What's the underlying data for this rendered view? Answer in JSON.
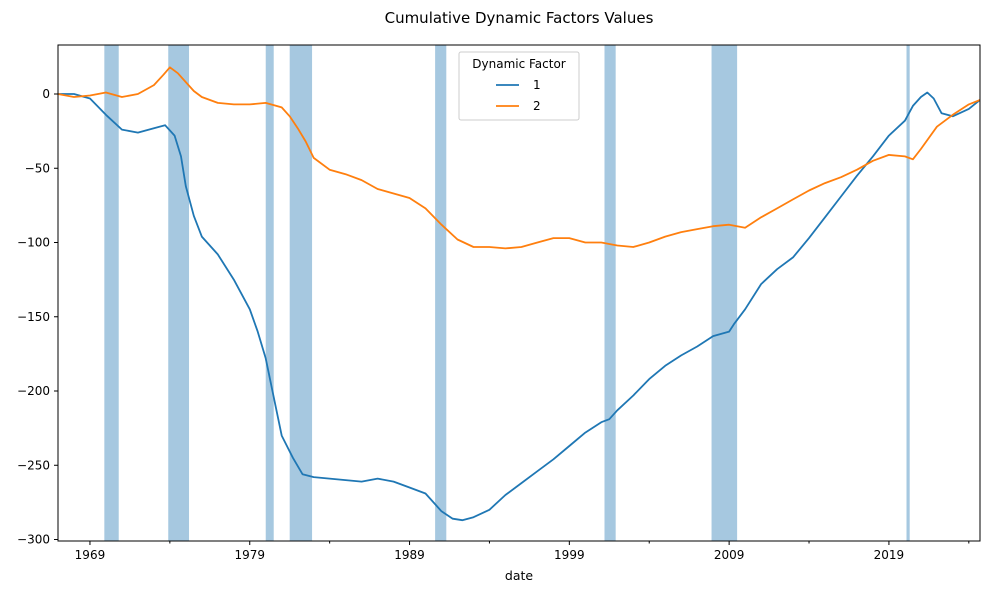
{
  "chart_data": {
    "type": "line",
    "title": "Cumulative Dynamic Factors Values",
    "xlabel": "date",
    "ylabel": "",
    "x_range": [
      1967.0,
      2024.7
    ],
    "ylim": [
      -301,
      33
    ],
    "x_ticks": [
      1969,
      1979,
      1989,
      1999,
      2009,
      2019
    ],
    "y_ticks": [
      0,
      -50,
      -100,
      -150,
      -200,
      -250,
      -300
    ],
    "grid": false,
    "legend": {
      "title": "Dynamic Factor",
      "placement": "top-center"
    },
    "shaded_periods": [
      {
        "start": 1969.9,
        "end": 1970.8
      },
      {
        "start": 1973.9,
        "end": 1975.2
      },
      {
        "start": 1980.0,
        "end": 1980.5
      },
      {
        "start": 1981.5,
        "end": 1982.9
      },
      {
        "start": 1990.6,
        "end": 1991.3
      },
      {
        "start": 2001.2,
        "end": 2001.9
      },
      {
        "start": 2007.9,
        "end": 2009.5
      },
      {
        "start": 2020.1,
        "end": 2020.3
      }
    ],
    "shade_color": "#a6c8e0",
    "series": [
      {
        "name": "1",
        "color": "#1f77b4",
        "x": [
          1967.0,
          1968.0,
          1969.0,
          1970.0,
          1971.0,
          1972.0,
          1973.0,
          1973.7,
          1974.3,
          1974.7,
          1975.0,
          1975.5,
          1976.0,
          1977.0,
          1978.0,
          1979.0,
          1979.5,
          1980.0,
          1980.5,
          1981.0,
          1981.7,
          1982.3,
          1983.0,
          1984.0,
          1985.0,
          1986.0,
          1987.0,
          1988.0,
          1989.0,
          1990.0,
          1990.5,
          1991.0,
          1991.7,
          1992.3,
          1993.0,
          1994.0,
          1995.0,
          1996.0,
          1997.0,
          1998.0,
          1999.0,
          2000.0,
          2001.0,
          2001.5,
          2002.0,
          2003.0,
          2004.0,
          2005.0,
          2006.0,
          2007.0,
          2008.0,
          2009.0,
          2009.3,
          2010.0,
          2011.0,
          2012.0,
          2013.0,
          2014.0,
          2015.0,
          2016.0,
          2017.0,
          2018.0,
          2019.0,
          2020.0,
          2020.5,
          2021.0,
          2021.4,
          2021.8,
          2022.3,
          2023.0,
          2024.0,
          2024.7
        ],
        "values": [
          0,
          0,
          -3,
          -14,
          -24,
          -26,
          -23,
          -21,
          -28,
          -42,
          -62,
          -82,
          -96,
          -108,
          -125,
          -145,
          -160,
          -178,
          -204,
          -230,
          -245,
          -256,
          -258,
          -259,
          -260,
          -261,
          -259,
          -261,
          -265,
          -269,
          -275,
          -281,
          -286,
          -287,
          -285,
          -280,
          -270,
          -262,
          -254,
          -246,
          -237,
          -228,
          -221,
          -219,
          -213,
          -203,
          -192,
          -183,
          -176,
          -170,
          -163,
          -160,
          -155,
          -145,
          -128,
          -118,
          -110,
          -97,
          -83,
          -69,
          -55,
          -42,
          -28,
          -18,
          -8,
          -2,
          1,
          -3,
          -13,
          -15,
          -10,
          -4
        ]
      },
      {
        "name": "2",
        "color": "#ff7f0e",
        "x": [
          1967.0,
          1968.0,
          1969.0,
          1970.0,
          1971.0,
          1972.0,
          1973.0,
          1973.6,
          1974.0,
          1974.5,
          1975.0,
          1975.5,
          1976.0,
          1977.0,
          1978.0,
          1979.0,
          1980.0,
          1981.0,
          1981.5,
          1982.0,
          1982.5,
          1983.0,
          1984.0,
          1985.0,
          1986.0,
          1987.0,
          1988.0,
          1989.0,
          1990.0,
          1991.0,
          1992.0,
          1993.0,
          1994.0,
          1995.0,
          1996.0,
          1997.0,
          1998.0,
          1999.0,
          2000.0,
          2001.0,
          2002.0,
          2003.0,
          2004.0,
          2005.0,
          2006.0,
          2007.0,
          2008.0,
          2009.0,
          2010.0,
          2011.0,
          2012.0,
          2013.0,
          2014.0,
          2015.0,
          2016.0,
          2017.0,
          2018.0,
          2019.0,
          2020.0,
          2020.5,
          2021.0,
          2022.0,
          2023.0,
          2024.0,
          2024.7
        ],
        "values": [
          0,
          -2,
          -1,
          1,
          -2,
          0,
          6,
          13,
          18,
          14,
          8,
          2,
          -2,
          -6,
          -7,
          -7,
          -6,
          -9,
          -15,
          -23,
          -32,
          -43,
          -51,
          -54,
          -58,
          -64,
          -67,
          -70,
          -77,
          -88,
          -98,
          -103,
          -103,
          -104,
          -103,
          -100,
          -97,
          -97,
          -100,
          -100,
          -102,
          -103,
          -100,
          -96,
          -93,
          -91,
          -89,
          -88,
          -90,
          -83,
          -77,
          -71,
          -65,
          -60,
          -56,
          -51,
          -45,
          -41,
          -42,
          -44,
          -37,
          -22,
          -14,
          -7,
          -4
        ]
      }
    ]
  }
}
